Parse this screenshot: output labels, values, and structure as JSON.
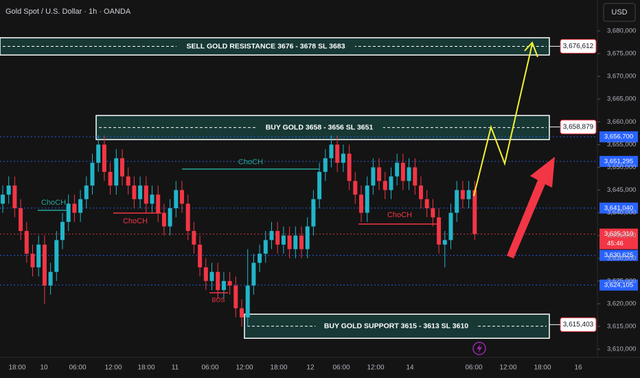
{
  "chart_data": {
    "type": "candlestick",
    "title": "Gold Spot / U.S. Dollar · 1h · OANDA",
    "currency": "USD",
    "up_color": "#22b5c9",
    "down_color": "#f23645",
    "x_labels": [
      "18:00",
      "10",
      "06:00",
      "12:00",
      "18:00",
      "11",
      "06:00",
      "12:00",
      "18:00",
      "12",
      "06:00",
      "12:00",
      "14",
      "06:00",
      "12:00",
      "18:00",
      "16"
    ],
    "candles": {
      "open": [
        3642,
        3644,
        3646,
        3641,
        3636,
        3631,
        3628,
        3633,
        3624,
        3627,
        3634,
        3638,
        3642,
        3640,
        3643,
        3646,
        3651,
        3655,
        3649,
        3646,
        3652,
        3648,
        3646,
        3643,
        3646,
        3642,
        3644,
        3640,
        3637,
        3641,
        3645,
        3642,
        3636,
        3633,
        3628,
        3625,
        3627,
        3623,
        3625,
        3624,
        3619,
        3617,
        3624,
        3629,
        3631,
        3634,
        3636,
        3633,
        3635,
        3632,
        3635,
        3632,
        3637,
        3643,
        3649,
        3652,
        3655,
        3651,
        3653,
        3647,
        3644,
        3640,
        3646,
        3650,
        3647,
        3645,
        3648,
        3651,
        3647,
        3650,
        3646,
        3643,
        3641,
        3639,
        3633,
        3634,
        3640,
        3645,
        3643,
        3645
      ],
      "high": [
        3646,
        3648,
        3648,
        3643,
        3638,
        3633,
        3635,
        3635,
        3629,
        3636,
        3640,
        3644,
        3644,
        3645,
        3648,
        3653,
        3657,
        3657,
        3651,
        3654,
        3654,
        3650,
        3648,
        3648,
        3648,
        3646,
        3646,
        3642,
        3643,
        3647,
        3647,
        3644,
        3638,
        3635,
        3630,
        3629,
        3629,
        3627,
        3627,
        3626,
        3621,
        3632,
        3631,
        3633,
        3636,
        3638,
        3638,
        3637,
        3637,
        3637,
        3637,
        3639,
        3645,
        3651,
        3654,
        3657,
        3657,
        3655,
        3655,
        3649,
        3646,
        3648,
        3652,
        3652,
        3649,
        3650,
        3653,
        3653,
        3652,
        3652,
        3648,
        3645,
        3643,
        3641,
        3636,
        3642,
        3647,
        3647,
        3647,
        3647
      ],
      "low": [
        3640,
        3642,
        3639,
        3634,
        3629,
        3626,
        3626,
        3620,
        3622,
        3625,
        3632,
        3636,
        3638,
        3638,
        3641,
        3644,
        3649,
        3647,
        3644,
        3644,
        3646,
        3644,
        3641,
        3641,
        3640,
        3640,
        3638,
        3635,
        3635,
        3639,
        3640,
        3634,
        3631,
        3626,
        3623,
        3623,
        3621,
        3621,
        3622,
        3617,
        3615,
        3615,
        3622,
        3627,
        3629,
        3632,
        3631,
        3631,
        3630,
        3630,
        3630,
        3630,
        3635,
        3641,
        3647,
        3650,
        3649,
        3649,
        3645,
        3642,
        3638,
        3638,
        3644,
        3645,
        3643,
        3643,
        3646,
        3645,
        3645,
        3644,
        3641,
        3639,
        3637,
        3631,
        3628,
        3632,
        3638,
        3641,
        3641,
        3634
      ],
      "close": [
        3644,
        3646,
        3641,
        3636,
        3631,
        3628,
        3633,
        3624,
        3627,
        3634,
        3638,
        3642,
        3640,
        3643,
        3646,
        3651,
        3655,
        3649,
        3646,
        3652,
        3648,
        3646,
        3643,
        3646,
        3642,
        3644,
        3640,
        3637,
        3641,
        3645,
        3642,
        3636,
        3633,
        3628,
        3625,
        3627,
        3623,
        3625,
        3624,
        3619,
        3617,
        3624,
        3629,
        3631,
        3634,
        3636,
        3633,
        3635,
        3632,
        3635,
        3632,
        3637,
        3643,
        3649,
        3652,
        3655,
        3651,
        3653,
        3647,
        3644,
        3640,
        3646,
        3650,
        3647,
        3645,
        3648,
        3651,
        3647,
        3650,
        3646,
        3643,
        3641,
        3639,
        3633,
        3634,
        3640,
        3645,
        3643,
        3645,
        3635.31
      ]
    },
    "ylim": [
      3608.2,
      3686.8
    ],
    "yticks": [
      {
        "value": 3610,
        "label": "3,610,000"
      },
      {
        "value": 3615,
        "label": "3,615,000"
      },
      {
        "value": 3620,
        "label": "3,620,000"
      },
      {
        "value": 3625,
        "label": "3,625,000"
      },
      {
        "value": 3630,
        "label": "3,630,000"
      },
      {
        "value": 3635,
        "label": "3,635,000"
      },
      {
        "value": 3640,
        "label": "3,640,000"
      },
      {
        "value": 3645,
        "label": "3,645,000"
      },
      {
        "value": 3650,
        "label": "3,650,000"
      },
      {
        "value": 3655,
        "label": "3,655,000"
      },
      {
        "value": 3660,
        "label": "3,660,000"
      },
      {
        "value": 3665,
        "label": "3,665,000"
      },
      {
        "value": 3670,
        "label": "3,670,000"
      },
      {
        "value": 3675,
        "label": "3,675,000"
      },
      {
        "value": 3680,
        "label": "3,680,000"
      }
    ],
    "levels": [
      {
        "value": 3676.612,
        "label": "3,676,612",
        "color": "#ffffff"
      },
      {
        "value": 3658.879,
        "label": "3,658,879",
        "color": "#ffffff"
      },
      {
        "value": 3656.7,
        "label": "3,656,700",
        "color": "#2962ff"
      },
      {
        "value": 3651.295,
        "label": "3,651,295",
        "color": "#2962ff"
      },
      {
        "value": 3641.04,
        "label": "3,641,040",
        "color": "#2962ff"
      },
      {
        "value": 3635.31,
        "label": "3,635,310",
        "color": "#f23645"
      },
      {
        "value": 3630.625,
        "label": "3,630,625",
        "color": "#2962ff"
      },
      {
        "value": 3624.105,
        "label": "3,624,105",
        "color": "#2962ff"
      },
      {
        "value": 3615.403,
        "label": "3,615,403",
        "color": "#ffffff"
      }
    ],
    "countdown": "45:46",
    "zones": [
      {
        "top": 3678.5,
        "bottom": 3674.7,
        "label": "SELL GOLD RESISTANCE 3676 - 3678 SL 3683"
      },
      {
        "top": 3661.4,
        "bottom": 3656.1,
        "label": "BUY GOLD 3658 - 3656 SL 3651"
      },
      {
        "top": 3617.7,
        "bottom": 3612.4,
        "label": "BUY GOLD SUPPORT 3615 - 3613 SL 3610"
      }
    ],
    "annotations": [
      "ChoCH",
      "ChoCH",
      "ChoCH",
      "ChoCH",
      "BOS"
    ]
  }
}
